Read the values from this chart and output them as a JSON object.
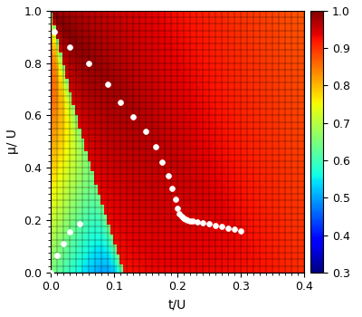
{
  "xlabel": "t/U",
  "ylabel": "μ/ U",
  "xlim": [
    0,
    0.4
  ],
  "ylim": [
    0,
    1.0
  ],
  "xticks": [
    0,
    0.1,
    0.2,
    0.3,
    0.4
  ],
  "yticks": [
    0,
    0.2,
    0.4,
    0.6,
    0.8,
    1.0
  ],
  "cbar_ticks": [
    0.3,
    0.4,
    0.5,
    0.6,
    0.7,
    0.8,
    0.9,
    1.0
  ],
  "vmin": 0.3,
  "vmax": 1.0,
  "nx": 80,
  "ny": 80,
  "white_dots": [
    [
      0.0,
      0.0
    ],
    [
      0.01,
      0.065
    ],
    [
      0.02,
      0.11
    ],
    [
      0.03,
      0.155
    ],
    [
      0.045,
      0.185
    ],
    [
      0.005,
      0.92
    ],
    [
      0.03,
      0.86
    ],
    [
      0.06,
      0.8
    ],
    [
      0.09,
      0.72
    ],
    [
      0.11,
      0.65
    ],
    [
      0.13,
      0.595
    ],
    [
      0.15,
      0.54
    ],
    [
      0.165,
      0.48
    ],
    [
      0.175,
      0.42
    ],
    [
      0.185,
      0.37
    ],
    [
      0.192,
      0.32
    ],
    [
      0.197,
      0.28
    ],
    [
      0.2,
      0.245
    ],
    [
      0.203,
      0.225
    ],
    [
      0.207,
      0.215
    ],
    [
      0.21,
      0.208
    ],
    [
      0.213,
      0.203
    ],
    [
      0.216,
      0.2
    ],
    [
      0.22,
      0.198
    ],
    [
      0.225,
      0.196
    ],
    [
      0.232,
      0.193
    ],
    [
      0.24,
      0.19
    ],
    [
      0.25,
      0.185
    ],
    [
      0.26,
      0.18
    ],
    [
      0.27,
      0.175
    ],
    [
      0.28,
      0.17
    ],
    [
      0.29,
      0.165
    ],
    [
      0.3,
      0.16
    ]
  ],
  "grid_color": "black",
  "grid_linewidth": 0.3,
  "dot_size": 18
}
